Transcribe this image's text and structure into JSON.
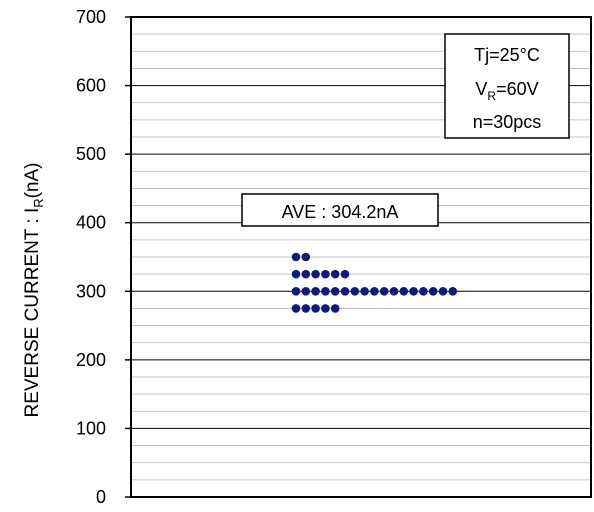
{
  "chart_data": {
    "type": "scatter",
    "ylim": [
      0,
      700
    ],
    "yticks": [
      "0",
      "100",
      "200",
      "300",
      "400",
      "500",
      "600",
      "700"
    ],
    "ylabel": {
      "main": "REVERSE CURRENT : I",
      "sub": "R",
      "tail": "(nA)"
    },
    "grid": true,
    "conditions": [
      {
        "main": "Tj=25°C",
        "sub": "",
        "tail": ""
      },
      {
        "main": "V",
        "sub": "R",
        "tail": "=60V"
      },
      {
        "main": "n=30pcs",
        "sub": "",
        "tail": ""
      }
    ],
    "annotation": "AVE : 304.2nA",
    "dot_color": "#0d1a80",
    "points": [
      {
        "y": 350,
        "count": 2
      },
      {
        "y": 325,
        "count": 6
      },
      {
        "y": 300,
        "count": 17
      },
      {
        "y": 275,
        "count": 5
      }
    ]
  }
}
